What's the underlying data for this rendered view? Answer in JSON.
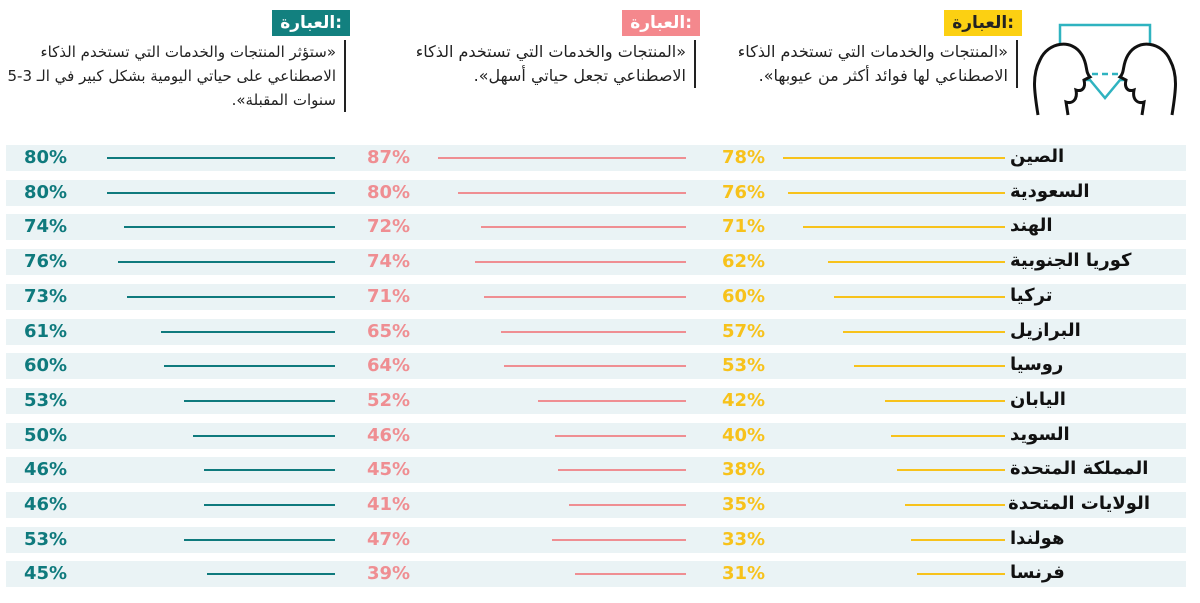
{
  "colors": {
    "yellow": "#f7c21b",
    "pink": "#ef8e92",
    "teal": "#0f7a7d",
    "band": "#eaf3f5",
    "tag_yellow": "#fcd012",
    "tag_pink": "#f4888d",
    "tag_teal": "#12807f"
  },
  "headers": {
    "col1": {
      "tag": "العبارة:",
      "text": "«المنتجات والخدمات التي تستخدم الذكاء الاصطناعي لها فوائد أكثر من عيوبها»."
    },
    "col2": {
      "tag": "العبارة:",
      "text": "«المنتجات والخدمات التي تستخدم الذكاء الاصطناعي تجعل حياتي أسهل»."
    },
    "col3": {
      "tag": "العبارة:",
      "text": "«ستؤثر المنتجات والخدمات التي تستخدم الذكاء الاصطناعي على حياتي اليومية بشكل كبير في الـ 3-5 سنوات المقبلة»."
    }
  },
  "chart_data": {
    "type": "bar",
    "title": "",
    "categories": [
      "الصين",
      "السعودية",
      "الهند",
      "كوريا الجنوبية",
      "تركيا",
      "البرازيل",
      "روسيا",
      "اليابان",
      "السويد",
      "المملكة المتحدة",
      "الولايات المتحدة",
      "هولندا",
      "فرنسا"
    ],
    "series": [
      {
        "name": "فوائد أكثر من عيوبها",
        "values": [
          78,
          76,
          71,
          62,
          60,
          57,
          53,
          42,
          40,
          38,
          35,
          33,
          31
        ],
        "labels": [
          "78%",
          "76%",
          "71%",
          "62%",
          "60%",
          "57%",
          "53%",
          "42%",
          "40%",
          "38%",
          "35%",
          "33%",
          "31%"
        ]
      },
      {
        "name": "تجعل حياتي أسهل",
        "values": [
          87,
          80,
          72,
          74,
          71,
          65,
          64,
          52,
          46,
          45,
          41,
          47,
          39
        ],
        "labels": [
          "87%",
          "80%",
          "72%",
          "74%",
          "71%",
          "65%",
          "64%",
          "52%",
          "46%",
          "45%",
          "41%",
          "47%",
          "39%"
        ]
      },
      {
        "name": "ستؤثر على حياتي اليومية",
        "values": [
          80,
          80,
          74,
          76,
          73,
          61,
          60,
          53,
          50,
          46,
          46,
          53,
          45
        ],
        "labels": [
          "80%",
          "80%",
          "74%",
          "76%",
          "73%",
          "61%",
          "60%",
          "53%",
          "50%",
          "46%",
          "46%",
          "53%",
          "45%"
        ]
      }
    ],
    "ylim": [
      0,
      100
    ]
  }
}
